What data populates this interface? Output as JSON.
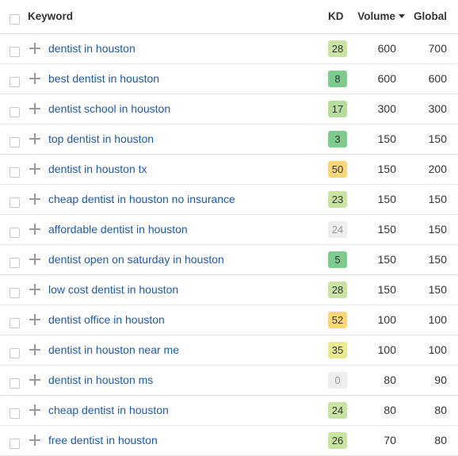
{
  "header": {
    "keyword": "Keyword",
    "kd": "KD",
    "volume": "Volume",
    "global": "Global",
    "sort_icon": "caret-down-icon"
  },
  "colors": {
    "link": "#1f5aa8",
    "kd_very_easy": "#7ecb8f",
    "kd_easy": "#c5e0a0",
    "kd_medium": "#eaea8e",
    "kd_hard": "#fbd57a",
    "kd_none": "#eeeeee"
  },
  "rows": [
    {
      "keyword": "dentist in houston",
      "kd": "28",
      "kd_color": "#c8e3a4",
      "volume": "600",
      "global": "700"
    },
    {
      "keyword": "best dentist in houston",
      "kd": "8",
      "kd_color": "#7ecb8f",
      "volume": "600",
      "global": "600"
    },
    {
      "keyword": "dentist school in houston",
      "kd": "17",
      "kd_color": "#b6dd9c",
      "volume": "300",
      "global": "300"
    },
    {
      "keyword": "top dentist in houston",
      "kd": "3",
      "kd_color": "#7ecb8f",
      "volume": "150",
      "global": "150"
    },
    {
      "keyword": "dentist in houston tx",
      "kd": "50",
      "kd_color": "#fbd57a",
      "volume": "150",
      "global": "200"
    },
    {
      "keyword": "cheap dentist in houston no insurance",
      "kd": "23",
      "kd_color": "#c8e3a4",
      "volume": "150",
      "global": "150"
    },
    {
      "keyword": "affordable dentist in houston",
      "kd": "24",
      "kd_color": "#eeeeee",
      "volume": "150",
      "global": "150"
    },
    {
      "keyword": "dentist open on saturday in houston",
      "kd": "5",
      "kd_color": "#7ecb8f",
      "volume": "150",
      "global": "150"
    },
    {
      "keyword": "low cost dentist in houston",
      "kd": "28",
      "kd_color": "#c8e3a4",
      "volume": "150",
      "global": "150"
    },
    {
      "keyword": "dentist office in houston",
      "kd": "52",
      "kd_color": "#fbd57a",
      "volume": "100",
      "global": "100"
    },
    {
      "keyword": "dentist in houston near me",
      "kd": "35",
      "kd_color": "#eaea8e",
      "volume": "100",
      "global": "100"
    },
    {
      "keyword": "dentist in houston ms",
      "kd": "0",
      "kd_color": "#eeeeee",
      "volume": "80",
      "global": "90"
    },
    {
      "keyword": "cheap dentist in houston",
      "kd": "24",
      "kd_color": "#c8e3a4",
      "volume": "80",
      "global": "80"
    },
    {
      "keyword": "free dentist in houston",
      "kd": "26",
      "kd_color": "#c8e3a4",
      "volume": "70",
      "global": "80"
    }
  ]
}
